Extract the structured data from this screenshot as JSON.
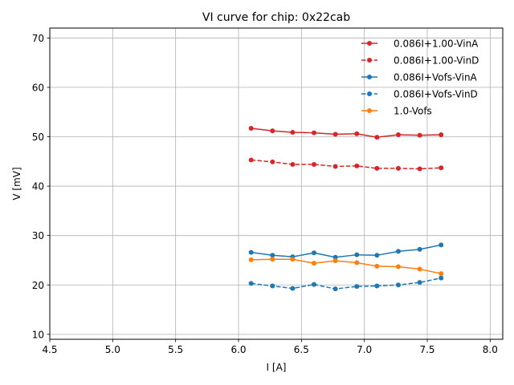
{
  "chart_data": {
    "type": "line",
    "title": "VI curve for chip: 0x22cab",
    "xlabel": "I [A]",
    "ylabel": "V [mV]",
    "xlim": [
      4.5,
      8.1
    ],
    "ylim": [
      9,
      72
    ],
    "xticks": [
      4.5,
      5.0,
      5.5,
      6.0,
      6.5,
      7.0,
      7.5,
      8.0
    ],
    "xtick_labels": [
      "4.5",
      "5.0",
      "5.5",
      "6.0",
      "6.5",
      "7.0",
      "7.5",
      "8.0"
    ],
    "yticks": [
      10,
      20,
      30,
      40,
      50,
      60,
      70
    ],
    "ytick_labels": [
      "10",
      "20",
      "30",
      "40",
      "50",
      "60",
      "70"
    ],
    "grid": true,
    "legend_position": "top-right",
    "x": [
      6.1,
      6.27,
      6.43,
      6.6,
      6.77,
      6.94,
      7.1,
      7.27,
      7.44,
      7.61
    ],
    "series": [
      {
        "name": "0.086I+1.00-VinA",
        "color": "#d62728",
        "dashed": false,
        "values": [
          51.7,
          51.2,
          50.9,
          50.8,
          50.5,
          50.6,
          49.9,
          50.4,
          50.3,
          50.4
        ]
      },
      {
        "name": "0.086I+1.00-VinD",
        "color": "#d62728",
        "dashed": true,
        "values": [
          45.3,
          44.9,
          44.4,
          44.4,
          44.0,
          44.1,
          43.6,
          43.6,
          43.5,
          43.7
        ]
      },
      {
        "name": "0.086I+Vofs-VinA",
        "color": "#1f77b4",
        "dashed": false,
        "values": [
          26.6,
          26.0,
          25.7,
          26.5,
          25.6,
          26.1,
          26.0,
          26.8,
          27.2,
          28.1
        ]
      },
      {
        "name": "0.086I+Vofs-VinD",
        "color": "#1f77b4",
        "dashed": true,
        "values": [
          20.3,
          19.8,
          19.3,
          20.1,
          19.2,
          19.7,
          19.8,
          20.0,
          20.5,
          21.4
        ]
      },
      {
        "name": "1.0-Vofs",
        "color": "#ff7f0e",
        "dashed": false,
        "values": [
          25.1,
          25.2,
          25.2,
          24.4,
          24.9,
          24.5,
          23.8,
          23.7,
          23.2,
          22.3
        ]
      }
    ]
  }
}
